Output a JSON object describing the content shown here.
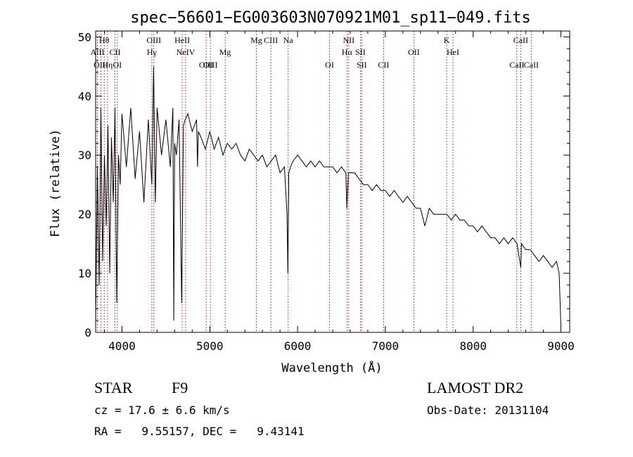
{
  "chart_data": {
    "type": "line",
    "title": "spec−56601−EG003603N070921M01_sp11−049.fits",
    "xlabel": "Wavelength (Å)",
    "ylabel": "Flux (relative)",
    "xlim": [
      3700,
      9100
    ],
    "ylim": [
      0,
      51
    ],
    "x_ticks": [
      4000,
      5000,
      6000,
      7000,
      8000,
      9000
    ],
    "y_ticks": [
      0,
      10,
      20,
      30,
      40,
      50
    ],
    "grid": false,
    "series": [
      {
        "x": [
          3700,
          3720,
          3740,
          3760,
          3780,
          3800,
          3820,
          3840,
          3860,
          3880,
          3900,
          3920,
          3940,
          3960,
          3980,
          4000,
          4050,
          4100,
          4150,
          4200,
          4250,
          4300,
          4340,
          4360,
          4380,
          4400,
          4450,
          4500,
          4550,
          4580,
          4590,
          4600,
          4620,
          4650,
          4680,
          4700,
          4720,
          4750,
          4800,
          4850,
          4860,
          4870,
          4900,
          4950,
          5000,
          5050,
          5100,
          5150,
          5200,
          5250,
          5300,
          5350,
          5400,
          5450,
          5500,
          5550,
          5600,
          5650,
          5700,
          5750,
          5800,
          5850,
          5880,
          5890,
          5900,
          5920,
          5950,
          6000,
          6050,
          6100,
          6150,
          6200,
          6250,
          6300,
          6350,
          6400,
          6450,
          6500,
          6550,
          6562,
          6580,
          6600,
          6650,
          6700,
          6750,
          6800,
          6850,
          6900,
          6950,
          7000,
          7050,
          7100,
          7150,
          7200,
          7250,
          7300,
          7350,
          7400,
          7450,
          7500,
          7550,
          7600,
          7650,
          7700,
          7750,
          7800,
          7850,
          7900,
          7950,
          8000,
          8050,
          8100,
          8150,
          8200,
          8250,
          8300,
          8350,
          8400,
          8450,
          8500,
          8542,
          8550,
          8600,
          8650,
          8700,
          8750,
          8800,
          8850,
          8900,
          8950,
          8980,
          9000
        ],
        "y": [
          2,
          28,
          8,
          38,
          12,
          30,
          18,
          35,
          10,
          33,
          22,
          38,
          5,
          30,
          25,
          37,
          28,
          38,
          26,
          34,
          22,
          36,
          25,
          45,
          22,
          38,
          30,
          36,
          28,
          38,
          2,
          32,
          30,
          36,
          5,
          35,
          36,
          37,
          34,
          36,
          28,
          34,
          33,
          31,
          34,
          31,
          33,
          30,
          32,
          31,
          32,
          30,
          29,
          31,
          30,
          29,
          30,
          28,
          29,
          30,
          27,
          28,
          20,
          10,
          27,
          28,
          29,
          30,
          29,
          28,
          29,
          28,
          29,
          28,
          28,
          28,
          27,
          28,
          27,
          21,
          27,
          27,
          27,
          26,
          25,
          25,
          24,
          25,
          24,
          24,
          23,
          24,
          23,
          22,
          23,
          22,
          21,
          21,
          18,
          21,
          20,
          20,
          20,
          20,
          19,
          20,
          19,
          19,
          18,
          18,
          17,
          18,
          17,
          16,
          16,
          15,
          16,
          15,
          16,
          15,
          11,
          15,
          14,
          14,
          13,
          12,
          13,
          12,
          11,
          12,
          10,
          1
        ]
      }
    ],
    "lines": [
      {
        "label": "Hθ",
        "x": 3798,
        "row": 1
      },
      {
        "label": "AlII",
        "x": 3720,
        "row": 2
      },
      {
        "label": "CII",
        "x": 3920,
        "row": 2
      },
      {
        "label": "OIII",
        "x": 3760,
        "row": 3
      },
      {
        "label": "Hη",
        "x": 3835,
        "row": 3
      },
      {
        "label": "OI",
        "x": 3947,
        "row": 3
      },
      {
        "label": "OIII",
        "x": 4363,
        "row": 1
      },
      {
        "label": "Hγ",
        "x": 4340,
        "row": 2
      },
      {
        "label": "HeII",
        "x": 4686,
        "row": 1
      },
      {
        "label": "NeIV",
        "x": 4725,
        "row": 2
      },
      {
        "label": "OIII",
        "x": 4959,
        "row": 3
      },
      {
        "label": "OIII",
        "x": 5007,
        "row": 3
      },
      {
        "label": "Mg",
        "x": 5175,
        "row": 2
      },
      {
        "label": "Mg",
        "x": 5530,
        "row": 1
      },
      {
        "label": "CIII",
        "x": 5696,
        "row": 1
      },
      {
        "label": "Na",
        "x": 5893,
        "row": 1
      },
      {
        "label": "NII",
        "x": 6583,
        "row": 1
      },
      {
        "label": "Hα",
        "x": 6563,
        "row": 2
      },
      {
        "label": "SII",
        "x": 6716,
        "row": 2
      },
      {
        "label": "OI",
        "x": 6364,
        "row": 3
      },
      {
        "label": "SII",
        "x": 6731,
        "row": 3
      },
      {
        "label": "CII",
        "x": 6980,
        "row": 3
      },
      {
        "label": "OII",
        "x": 7325,
        "row": 2
      },
      {
        "label": "K",
        "x": 7699,
        "row": 1
      },
      {
        "label": "HeI",
        "x": 7770,
        "row": 2
      },
      {
        "label": "CaII",
        "x": 8542,
        "row": 1
      },
      {
        "label": "CaII",
        "x": 8498,
        "row": 3
      },
      {
        "label": "CaII",
        "x": 8662,
        "row": 3
      }
    ]
  },
  "footer": {
    "object_type": "STAR",
    "subclass": "F9",
    "survey": "LAMOST DR2",
    "cz": "cz = 17.6 ± 6.6 km/s",
    "obs_date": "Obs-Date: 20131104",
    "coords": "RA =   9.55157, DEC =   9.43141"
  }
}
